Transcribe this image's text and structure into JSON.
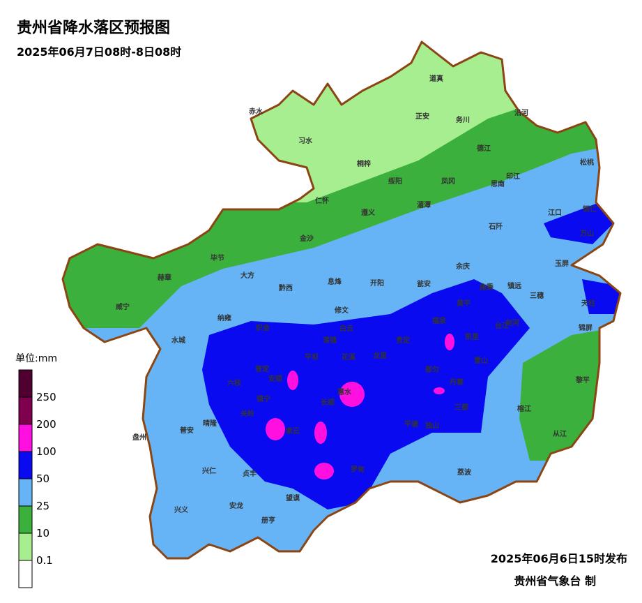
{
  "header": {
    "title": "贵州省降水落区预报图",
    "subtitle": "2025年06月7日08时-8日08时"
  },
  "legend": {
    "unit": "单位:mm",
    "ticks": [
      0.1,
      10,
      25,
      50,
      100,
      200,
      250
    ],
    "colors": [
      "#ffffff",
      "#a6ee90",
      "#3cb03c",
      "#66b4f5",
      "#0a0af0",
      "#ff10e0",
      "#800050",
      "#500030"
    ]
  },
  "counties": [
    "道真",
    "正安",
    "务川",
    "沿河",
    "赤水",
    "习水",
    "桐梓",
    "德江",
    "松桃",
    "绥阳",
    "凤冈",
    "印江",
    "思南",
    "仁怀",
    "遵义",
    "湄潭",
    "江口",
    "铜仁",
    "石阡",
    "万山",
    "金沙",
    "毕节",
    "大方",
    "赫章",
    "余庆",
    "玉屏",
    "黔西",
    "息烽",
    "开阳",
    "瓮安",
    "施秉",
    "镇远",
    "三穗",
    "天柱",
    "威宁",
    "黄平",
    "修文",
    "纳雍",
    "织金",
    "白云",
    "清镇",
    "剑河",
    "锦屏",
    "台江",
    "凯里",
    "福泉",
    "贵定",
    "水城",
    "平坝",
    "花溪",
    "龙里",
    "雷山",
    "黎平",
    "都匀",
    "丹寨",
    "普定",
    "安顺",
    "六枝",
    "惠水",
    "镇宁",
    "长顺",
    "三都",
    "榕江",
    "关岭",
    "平塘",
    "独山",
    "从江",
    "盘州",
    "普安",
    "晴隆",
    "紫云",
    "罗甸",
    "荔波",
    "兴仁",
    "贞丰",
    "望谟",
    "兴义",
    "安龙",
    "册亨"
  ],
  "footer": {
    "issued": "2025年06月6日15时发布",
    "agency": "贵州省气象台 制"
  }
}
